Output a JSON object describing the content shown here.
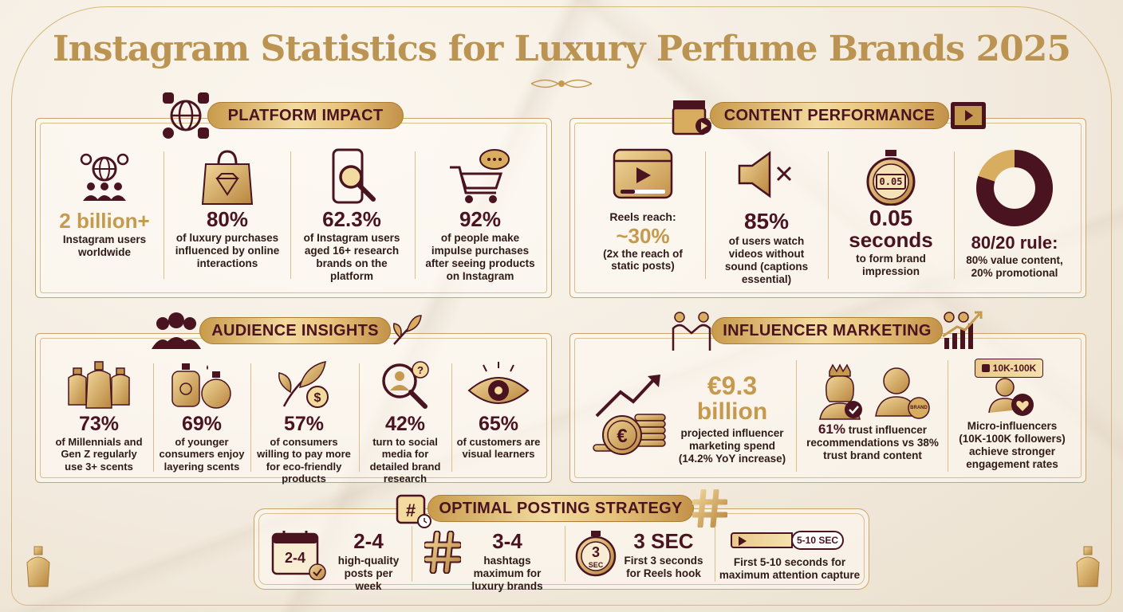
{
  "title": "Instagram Statistics for Luxury Perfume Brands 2025",
  "colors": {
    "gold": "#c59a4e",
    "maroon": "#4a1320",
    "frame": "#c9a56a"
  },
  "platform": {
    "heading": "PLATFORM IMPACT",
    "items": [
      {
        "icon": "users-globe-icon",
        "value": "2 billion+",
        "desc": "Instagram users worldwide"
      },
      {
        "icon": "diamond-bag-icon",
        "value": "80%",
        "desc": "of luxury purchases influenced by online interactions"
      },
      {
        "icon": "phone-search-icon",
        "value": "62.3%",
        "desc": "of Instagram users aged 16+ research brands on the platform"
      },
      {
        "icon": "cart-chat-icon",
        "value": "92%",
        "desc": "of people make impulse purchases after seeing products on Instagram"
      }
    ]
  },
  "content": {
    "heading": "CONTENT PERFORMANCE",
    "items": [
      {
        "icon": "reels-icon",
        "label": "Reels reach:",
        "value": "~30%",
        "desc": "(2x the reach of static posts)"
      },
      {
        "icon": "mute-icon",
        "value": "85%",
        "desc": "of users watch videos without sound (captions essential)"
      },
      {
        "icon": "stopwatch-icon",
        "timer": "0.05",
        "value": "0.05",
        "value2": "seconds",
        "desc": "to form brand impression"
      },
      {
        "icon": "donut-icon",
        "donut_value_pct": 80,
        "value": "80/20 rule:",
        "desc": "80% value content, 20% promotional"
      }
    ]
  },
  "audience": {
    "heading": "AUDIENCE INSIGHTS",
    "items": [
      {
        "icon": "perfume-bottles-icon",
        "value": "73%",
        "desc": "of Millennials and Gen Z regularly use 3+ scents"
      },
      {
        "icon": "layering-bottles-icon",
        "value": "69%",
        "desc": "of younger consumers enjoy layering scents"
      },
      {
        "icon": "leaf-coin-icon",
        "value": "57%",
        "desc": "of consumers willing to pay more for eco-friendly products"
      },
      {
        "icon": "person-search-icon",
        "value": "42%",
        "desc": "turn to social media for detailed brand research"
      },
      {
        "icon": "eye-icon",
        "value": "65%",
        "desc": "of customers are visual learners"
      }
    ]
  },
  "influencer": {
    "heading": "INFLUENCER MARKETING",
    "spend_value": "€9.3",
    "spend_value2": "billion",
    "spend_desc": "projected influencer marketing spend (14.2% YoY increase)",
    "trust_value": "61%",
    "trust_desc": "trust influencer recommendations vs 38% trust brand content",
    "brand_badge": "BRAND",
    "micro_badge": "10K-100K",
    "micro_desc": "Micro-influencers (10K-100K followers) achieve stronger engagement rates"
  },
  "posting": {
    "heading": "OPTIMAL POSTING STRATEGY",
    "items": [
      {
        "icon": "calendar-icon",
        "icon_text": "2-4",
        "value": "2-4",
        "desc": "high-quality posts per week"
      },
      {
        "icon": "hashtag-icon",
        "value": "3-4",
        "desc": "hashtags maximum for luxury brands"
      },
      {
        "icon": "timer-3sec-icon",
        "icon_text": "3",
        "icon_sub": "SEC",
        "value": "3 SEC",
        "desc": "First 3 seconds for Reels hook"
      },
      {
        "icon": "progress-icon",
        "badge": "5-10 SEC",
        "desc": "First 5-10 seconds for maximum attention capture"
      }
    ]
  }
}
